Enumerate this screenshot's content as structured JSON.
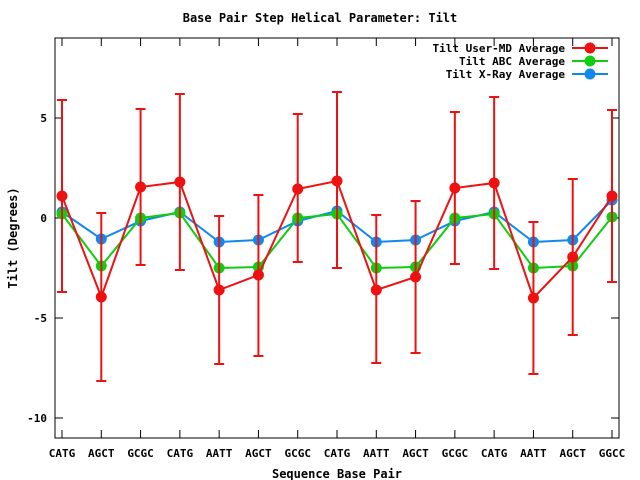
{
  "chart_data": {
    "type": "line",
    "title": "Base Pair Step Helical Parameter: Tilt",
    "xlabel": "Sequence Base Pair",
    "ylabel": "Tilt (Degrees)",
    "ylim": [
      -11,
      9
    ],
    "yticks": [
      -10,
      -5,
      0,
      5
    ],
    "grid": false,
    "legend_position": "top-right",
    "categories": [
      "CATG",
      "AGCT",
      "GCGC",
      "CATG",
      "AATT",
      "AGCT",
      "GCGC",
      "CATG",
      "AATT",
      "AGCT",
      "GCGC",
      "CATG",
      "AATT",
      "AGCT",
      "GGCC"
    ],
    "series": [
      {
        "name": "Tilt User-MD Average",
        "color": "#ee1111",
        "values": [
          1.1,
          -3.95,
          1.55,
          1.8,
          -3.6,
          -2.85,
          1.45,
          1.85,
          -3.6,
          -2.95,
          1.5,
          1.75,
          -4.0,
          -1.95,
          1.1
        ],
        "err_low": [
          -3.7,
          -8.15,
          -2.35,
          -2.6,
          -7.3,
          -6.9,
          -2.2,
          -2.5,
          -7.25,
          -6.75,
          -2.3,
          -2.55,
          -7.8,
          -5.85,
          -3.2
        ],
        "err_high": [
          5.9,
          0.25,
          5.45,
          6.2,
          0.1,
          1.15,
          5.2,
          6.3,
          0.15,
          0.85,
          5.3,
          6.05,
          -0.2,
          1.95,
          5.4
        ]
      },
      {
        "name": "Tilt ABC Average",
        "color": "#11cc11",
        "values": [
          0.2,
          -2.4,
          0.0,
          0.25,
          -2.5,
          -2.45,
          0.0,
          0.2,
          -2.5,
          -2.45,
          0.0,
          0.2,
          -2.5,
          -2.4,
          0.05
        ]
      },
      {
        "name": "Tilt X-Ray Average",
        "color": "#1188ee",
        "values": [
          0.3,
          -1.05,
          -0.15,
          0.3,
          -1.2,
          -1.1,
          -0.15,
          0.35,
          -1.2,
          -1.1,
          -0.15,
          0.3,
          -1.2,
          -1.1,
          0.9
        ]
      }
    ]
  }
}
